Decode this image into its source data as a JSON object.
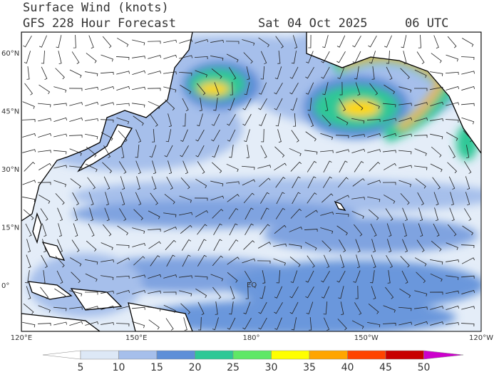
{
  "header": {
    "title": "Surface Wind (knots)",
    "model": "GFS 228 Hour Forecast",
    "date": "Sat 04 Oct 2025",
    "time": "06 UTC"
  },
  "map": {
    "lat_labels": [
      "60°N",
      "45°N",
      "30°N",
      "15°N",
      "0°"
    ],
    "lon_labels": [
      "120°E",
      "150°E",
      "180°",
      "150°W",
      "120°W"
    ],
    "annotations": [
      "EQ"
    ]
  },
  "colorbar": {
    "ticks": [
      5,
      10,
      15,
      20,
      25,
      30,
      35,
      40,
      45,
      50
    ],
    "colors": [
      "#ffffff",
      "#dde8f6",
      "#a6bfeb",
      "#5e8fd8",
      "#2ec896",
      "#5fe866",
      "#ffff00",
      "#ffa500",
      "#ff4400",
      "#c80000",
      "#cc00cc"
    ]
  }
}
